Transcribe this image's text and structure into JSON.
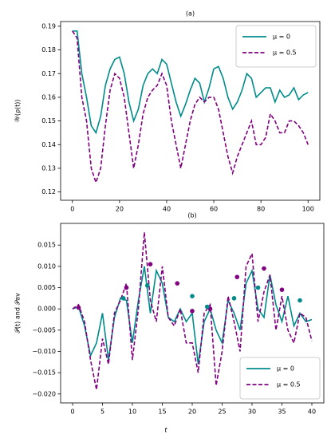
{
  "chart_data": [
    {
      "type": "line",
      "title": "(a)",
      "ylabel": "𝒲(ρ(t))",
      "x": [
        0,
        2,
        4,
        6,
        8,
        10,
        12,
        14,
        16,
        18,
        20,
        22,
        24,
        26,
        28,
        30,
        32,
        34,
        36,
        38,
        40,
        42,
        44,
        46,
        48,
        50,
        52,
        54,
        56,
        58,
        60,
        62,
        64,
        66,
        68,
        70,
        72,
        74,
        76,
        78,
        80,
        82,
        84,
        86,
        88,
        90,
        92,
        94,
        96,
        98,
        100
      ],
      "series": [
        {
          "name": "μ = 0",
          "color": "#008b8b",
          "dash": "solid",
          "values": [
            0.188,
            0.188,
            0.17,
            0.16,
            0.148,
            0.145,
            0.152,
            0.165,
            0.172,
            0.176,
            0.177,
            0.17,
            0.158,
            0.15,
            0.155,
            0.165,
            0.17,
            0.172,
            0.17,
            0.176,
            0.174,
            0.166,
            0.158,
            0.152,
            0.157,
            0.163,
            0.168,
            0.166,
            0.158,
            0.164,
            0.172,
            0.173,
            0.168,
            0.16,
            0.155,
            0.158,
            0.163,
            0.17,
            0.168,
            0.16,
            0.162,
            0.164,
            0.164,
            0.158,
            0.163,
            0.16,
            0.161,
            0.164,
            0.159,
            0.161,
            0.162
          ]
        },
        {
          "name": "μ = 0.5",
          "color": "#800080",
          "dash": "dashed",
          "values": [
            0.188,
            0.185,
            0.16,
            0.15,
            0.13,
            0.124,
            0.13,
            0.148,
            0.163,
            0.17,
            0.168,
            0.16,
            0.145,
            0.13,
            0.14,
            0.153,
            0.16,
            0.163,
            0.165,
            0.17,
            0.165,
            0.15,
            0.14,
            0.13,
            0.14,
            0.15,
            0.157,
            0.16,
            0.158,
            0.16,
            0.16,
            0.155,
            0.145,
            0.135,
            0.128,
            0.135,
            0.14,
            0.145,
            0.15,
            0.14,
            0.14,
            0.143,
            0.153,
            0.15,
            0.145,
            0.145,
            0.15,
            0.15,
            0.148,
            0.145,
            0.14
          ]
        }
      ],
      "xlim": [
        -5,
        105
      ],
      "xticks": [
        0,
        20,
        40,
        60,
        80,
        100
      ],
      "ylim": [
        0.1165,
        0.192
      ],
      "yticks": [
        0.12,
        0.13,
        0.14,
        0.15,
        0.16,
        0.17,
        0.18,
        0.19
      ],
      "legend": "upper right"
    },
    {
      "type": "line",
      "title": "(b)",
      "xlabel": "t",
      "ylabel": "𝒫(t) and 𝒫av",
      "x": [
        0,
        1,
        2,
        3,
        4,
        5,
        6,
        7,
        8,
        9,
        10,
        11,
        12,
        13,
        14,
        15,
        16,
        17,
        18,
        19,
        20,
        21,
        22,
        23,
        24,
        25,
        26,
        27,
        28,
        29,
        30,
        31,
        32,
        33,
        34,
        35,
        36,
        37,
        38,
        39,
        40
      ],
      "series": [
        {
          "name": "μ = 0",
          "color": "#008b8b",
          "dash": "solid",
          "values": [
            0,
            0.0005,
            -0.004,
            -0.011,
            -0.008,
            -0.001,
            -0.012,
            -0.002,
            0.0025,
            0.002,
            -0.008,
            0.002,
            0.01,
            -0.001,
            0.009,
            0.006,
            -0.002,
            -0.003,
            0,
            -0.003,
            -0.001,
            -0.013,
            -0.003,
            0,
            -0.005,
            -0.008,
            0.002,
            -0.001,
            -0.005,
            0.006,
            0.009,
            0,
            -0.002,
            0.008,
            0.001,
            -0.003,
            0.003,
            -0.004,
            -0.001,
            -0.003,
            -0.0025
          ]
        },
        {
          "name": "μ = 0.5",
          "color": "#800080",
          "dash": "dashed",
          "values": [
            0,
            0.001,
            -0.003,
            -0.012,
            -0.019,
            -0.007,
            -0.013,
            -0.001,
            0.002,
            0.006,
            -0.012,
            0,
            0.018,
            0.002,
            -0.003,
            0.01,
            -0.002,
            -0.004,
            0,
            -0.008,
            -0.008,
            -0.015,
            -0.001,
            0.001,
            -0.018,
            -0.01,
            0.003,
            -0.003,
            -0.01,
            0.01,
            0.013,
            -0.003,
            0.004,
            0.008,
            -0.005,
            0.003,
            -0.005,
            -0.008,
            -0.001,
            -0.002,
            -0.0075
          ]
        }
      ],
      "points": [
        {
          "color": "#800080",
          "x": [
            1,
            9,
            13,
            17.5,
            20,
            23,
            27.5,
            32,
            35
          ],
          "values": [
            0.0003,
            0.005,
            0.0105,
            0.006,
            -0.0005,
            0,
            0.0075,
            0.0095,
            0.0045
          ]
        },
        {
          "color": "#008b8b",
          "x": [
            8.5,
            12.5,
            20,
            22.5,
            27,
            31,
            38
          ],
          "values": [
            0.0025,
            0.0055,
            0.003,
            0.0005,
            0.0025,
            0.005,
            0.002
          ]
        }
      ],
      "xlim": [
        -2,
        42
      ],
      "xticks": [
        0,
        5,
        10,
        15,
        20,
        25,
        30,
        35,
        40
      ],
      "ylim": [
        -0.0221,
        0.0201
      ],
      "yticks": [
        {
          "value": -0.02,
          "label": "−0.020"
        },
        {
          "value": -0.015,
          "label": "−0.015"
        },
        {
          "value": -0.01,
          "label": "−0.010"
        },
        {
          "value": -0.005,
          "label": "−0.005"
        },
        {
          "value": 0,
          "label": "0.000"
        },
        {
          "value": 0.005,
          "label": "0.005"
        },
        {
          "value": 0.01,
          "label": "0.010"
        },
        {
          "value": 0.015,
          "label": "0.015"
        }
      ],
      "legend": "lower right"
    }
  ]
}
